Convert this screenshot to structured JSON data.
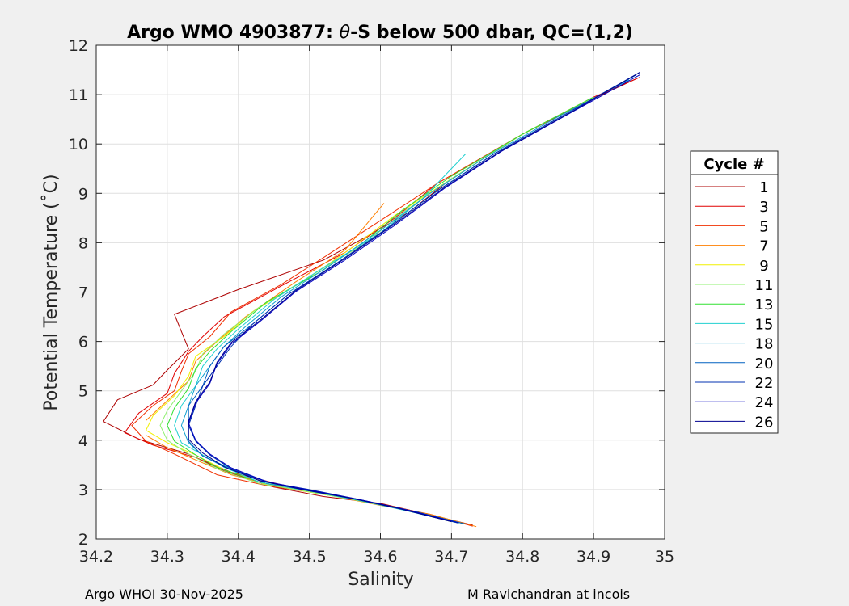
{
  "chart_data": {
    "type": "line",
    "title_prefix": "Argo WMO 4903877: ",
    "title_theta": "θ",
    "title_suffix": "-S below 500 dbar,  QC=(1,2)",
    "xlabel": "Salinity",
    "ylabel": "Potential Temperature (˚C)",
    "xlim": [
      34.2,
      35
    ],
    "ylim": [
      2,
      12
    ],
    "xticks": [
      "34.2",
      "34.3",
      "34.4",
      "34.5",
      "34.6",
      "34.7",
      "34.8",
      "34.9",
      "35"
    ],
    "yticks": [
      "2",
      "3",
      "4",
      "5",
      "6",
      "7",
      "8",
      "9",
      "10",
      "11",
      "12"
    ],
    "grid": true,
    "legend": {
      "title": "Cycle #",
      "placement": "right",
      "entries": [
        "1",
        "3",
        "5",
        "7",
        "9",
        "11",
        "13",
        "15",
        "18",
        "20",
        "22",
        "24",
        "26"
      ],
      "colors": [
        "#ad0000",
        "#e00000",
        "#f03000",
        "#ff7f00",
        "#f0f000",
        "#8ff070",
        "#30e030",
        "#20d0d0",
        "#10a0d0",
        "#0060c0",
        "#0030b0",
        "#0000c0",
        "#00008f"
      ]
    },
    "series": [
      {
        "name": "1",
        "values": [
          [
            34.73,
            2.28
          ],
          [
            34.66,
            2.52
          ],
          [
            34.6,
            2.72
          ],
          [
            34.52,
            2.86
          ],
          [
            34.45,
            3.05
          ],
          [
            34.38,
            3.38
          ],
          [
            34.33,
            3.72
          ],
          [
            34.26,
            4.02
          ],
          [
            34.21,
            4.38
          ],
          [
            34.23,
            4.82
          ],
          [
            34.28,
            5.12
          ],
          [
            34.3,
            5.42
          ],
          [
            34.33,
            5.85
          ],
          [
            34.32,
            6.2
          ],
          [
            34.31,
            6.55
          ],
          [
            34.4,
            7.05
          ],
          [
            34.52,
            7.65
          ],
          [
            34.58,
            8.12
          ],
          [
            34.64,
            8.62
          ],
          [
            34.7,
            9.3
          ],
          [
            34.8,
            10.2
          ],
          [
            34.9,
            10.92
          ],
          [
            34.96,
            11.32
          ]
        ]
      },
      {
        "name": "3",
        "values": [
          [
            34.73,
            2.26
          ],
          [
            34.67,
            2.5
          ],
          [
            34.6,
            2.7
          ],
          [
            34.53,
            2.9
          ],
          [
            34.46,
            3.1
          ],
          [
            34.39,
            3.35
          ],
          [
            34.34,
            3.65
          ],
          [
            34.28,
            3.9
          ],
          [
            34.24,
            4.15
          ],
          [
            34.26,
            4.55
          ],
          [
            34.3,
            4.95
          ],
          [
            34.31,
            5.35
          ],
          [
            34.33,
            5.8
          ],
          [
            34.35,
            6.1
          ],
          [
            34.38,
            6.5
          ],
          [
            34.47,
            7.2
          ],
          [
            34.55,
            7.8
          ],
          [
            34.62,
            8.5
          ],
          [
            34.68,
            9.2
          ],
          [
            34.8,
            10.2
          ],
          [
            34.9,
            10.95
          ],
          [
            34.965,
            11.35
          ]
        ]
      },
      {
        "name": "5",
        "values": [
          [
            34.72,
            2.3
          ],
          [
            34.66,
            2.5
          ],
          [
            34.58,
            2.76
          ],
          [
            34.51,
            2.93
          ],
          [
            34.44,
            3.08
          ],
          [
            34.37,
            3.3
          ],
          [
            34.31,
            3.72
          ],
          [
            34.27,
            3.98
          ],
          [
            34.25,
            4.3
          ],
          [
            34.28,
            4.7
          ],
          [
            34.31,
            5.0
          ],
          [
            34.32,
            5.4
          ],
          [
            34.33,
            5.75
          ],
          [
            34.36,
            6.1
          ],
          [
            34.39,
            6.6
          ],
          [
            34.46,
            7.15
          ],
          [
            34.52,
            7.7
          ],
          [
            34.6,
            8.45
          ],
          [
            34.68,
            9.2
          ],
          [
            34.8,
            10.2
          ],
          [
            34.9,
            10.95
          ]
        ]
      },
      {
        "name": "7",
        "values": [
          [
            34.735,
            2.25
          ],
          [
            34.67,
            2.5
          ],
          [
            34.6,
            2.68
          ],
          [
            34.53,
            2.88
          ],
          [
            34.46,
            3.05
          ],
          [
            34.39,
            3.3
          ],
          [
            34.34,
            3.6
          ],
          [
            34.3,
            3.85
          ],
          [
            34.27,
            4.1
          ],
          [
            34.27,
            4.4
          ],
          [
            34.3,
            4.8
          ],
          [
            34.33,
            5.2
          ],
          [
            34.34,
            5.6
          ],
          [
            34.37,
            6.0
          ],
          [
            34.41,
            6.5
          ],
          [
            34.48,
            7.2
          ],
          [
            34.55,
            7.85
          ],
          [
            34.605,
            8.8
          ]
        ]
      },
      {
        "name": "9",
        "values": [
          [
            34.72,
            2.3
          ],
          [
            34.65,
            2.55
          ],
          [
            34.57,
            2.78
          ],
          [
            34.5,
            2.95
          ],
          [
            34.44,
            3.1
          ],
          [
            34.38,
            3.4
          ],
          [
            34.34,
            3.7
          ],
          [
            34.3,
            3.95
          ],
          [
            34.27,
            4.2
          ],
          [
            34.28,
            4.5
          ],
          [
            34.31,
            4.9
          ],
          [
            34.33,
            5.3
          ],
          [
            34.34,
            5.7
          ],
          [
            34.38,
            6.1
          ],
          [
            34.42,
            6.6
          ],
          [
            34.5,
            7.3
          ],
          [
            34.56,
            7.9
          ],
          [
            34.62,
            8.55
          ],
          [
            34.7,
            9.3
          ],
          [
            34.8,
            10.2
          ],
          [
            34.9,
            10.95
          ]
        ]
      },
      {
        "name": "11",
        "values": [
          [
            34.7,
            2.35
          ],
          [
            34.63,
            2.6
          ],
          [
            34.56,
            2.8
          ],
          [
            34.49,
            2.98
          ],
          [
            34.43,
            3.12
          ],
          [
            34.37,
            3.42
          ],
          [
            34.33,
            3.72
          ],
          [
            34.3,
            4.0
          ],
          [
            34.29,
            4.3
          ],
          [
            34.3,
            4.6
          ],
          [
            34.32,
            5.0
          ],
          [
            34.34,
            5.4
          ],
          [
            34.35,
            5.75
          ],
          [
            34.38,
            6.15
          ],
          [
            34.43,
            6.7
          ],
          [
            34.51,
            7.4
          ],
          [
            34.58,
            8.0
          ],
          [
            34.63,
            8.6
          ],
          [
            34.7,
            9.3
          ],
          [
            34.8,
            10.2
          ],
          [
            34.9,
            10.95
          ]
        ]
      },
      {
        "name": "13",
        "values": [
          [
            34.72,
            2.3
          ],
          [
            34.65,
            2.55
          ],
          [
            34.57,
            2.78
          ],
          [
            34.5,
            2.98
          ],
          [
            34.43,
            3.15
          ],
          [
            34.37,
            3.45
          ],
          [
            34.34,
            3.7
          ],
          [
            34.31,
            3.98
          ],
          [
            34.3,
            4.3
          ],
          [
            34.31,
            4.65
          ],
          [
            34.33,
            5.05
          ],
          [
            34.34,
            5.45
          ],
          [
            34.36,
            5.8
          ],
          [
            34.39,
            6.2
          ],
          [
            34.44,
            6.8
          ],
          [
            34.52,
            7.45
          ],
          [
            34.58,
            8.05
          ],
          [
            34.63,
            8.65
          ],
          [
            34.7,
            9.35
          ],
          [
            34.8,
            10.2
          ],
          [
            34.9,
            10.95
          ]
        ]
      },
      {
        "name": "15",
        "values": [
          [
            34.71,
            2.32
          ],
          [
            34.64,
            2.56
          ],
          [
            34.57,
            2.78
          ],
          [
            34.5,
            2.97
          ],
          [
            34.43,
            3.15
          ],
          [
            34.38,
            3.45
          ],
          [
            34.35,
            3.7
          ],
          [
            34.32,
            3.95
          ],
          [
            34.31,
            4.3
          ],
          [
            34.32,
            4.7
          ],
          [
            34.34,
            5.1
          ],
          [
            34.35,
            5.5
          ],
          [
            34.37,
            5.85
          ],
          [
            34.4,
            6.25
          ],
          [
            34.45,
            6.85
          ],
          [
            34.52,
            7.5
          ],
          [
            34.6,
            8.2
          ],
          [
            34.66,
            8.9
          ],
          [
            34.72,
            9.8
          ]
        ]
      },
      {
        "name": "18",
        "values": [
          [
            34.72,
            2.3
          ],
          [
            34.65,
            2.55
          ],
          [
            34.58,
            2.76
          ],
          [
            34.51,
            2.95
          ],
          [
            34.44,
            3.12
          ],
          [
            34.39,
            3.42
          ],
          [
            34.35,
            3.68
          ],
          [
            34.33,
            3.95
          ],
          [
            34.32,
            4.3
          ],
          [
            34.33,
            4.7
          ],
          [
            34.34,
            5.1
          ],
          [
            34.36,
            5.5
          ],
          [
            34.38,
            5.9
          ],
          [
            34.41,
            6.3
          ],
          [
            34.46,
            6.9
          ],
          [
            34.53,
            7.55
          ],
          [
            34.6,
            8.25
          ],
          [
            34.67,
            9.0
          ],
          [
            34.75,
            9.75
          ],
          [
            34.85,
            10.55
          ],
          [
            34.95,
            11.3
          ]
        ]
      },
      {
        "name": "20",
        "values": [
          [
            34.72,
            2.3
          ],
          [
            34.65,
            2.55
          ],
          [
            34.58,
            2.77
          ],
          [
            34.51,
            2.96
          ],
          [
            34.45,
            3.12
          ],
          [
            34.39,
            3.4
          ],
          [
            34.35,
            3.68
          ],
          [
            34.33,
            3.98
          ],
          [
            34.33,
            4.3
          ],
          [
            34.33,
            4.7
          ],
          [
            34.35,
            5.1
          ],
          [
            34.36,
            5.5
          ],
          [
            34.38,
            5.9
          ],
          [
            34.42,
            6.35
          ],
          [
            34.47,
            6.95
          ],
          [
            34.54,
            7.6
          ],
          [
            34.61,
            8.3
          ],
          [
            34.68,
            9.05
          ],
          [
            34.76,
            9.8
          ],
          [
            34.86,
            10.6
          ],
          [
            34.96,
            11.4
          ]
        ]
      },
      {
        "name": "22",
        "values": [
          [
            34.71,
            2.32
          ],
          [
            34.64,
            2.57
          ],
          [
            34.57,
            2.8
          ],
          [
            34.5,
            3.0
          ],
          [
            34.44,
            3.15
          ],
          [
            34.39,
            3.42
          ],
          [
            34.36,
            3.7
          ],
          [
            34.34,
            3.98
          ],
          [
            34.33,
            4.3
          ],
          [
            34.34,
            4.7
          ],
          [
            34.35,
            5.1
          ],
          [
            34.37,
            5.5
          ],
          [
            34.39,
            5.9
          ],
          [
            34.42,
            6.35
          ],
          [
            34.47,
            6.95
          ],
          [
            34.54,
            7.6
          ],
          [
            34.61,
            8.3
          ],
          [
            34.68,
            9.05
          ],
          [
            34.76,
            9.8
          ],
          [
            34.86,
            10.6
          ],
          [
            34.965,
            11.45
          ]
        ]
      },
      {
        "name": "24",
        "values": [
          [
            34.71,
            2.33
          ],
          [
            34.64,
            2.58
          ],
          [
            34.57,
            2.8
          ],
          [
            34.5,
            2.99
          ],
          [
            34.44,
            3.16
          ],
          [
            34.39,
            3.44
          ],
          [
            34.36,
            3.72
          ],
          [
            34.34,
            4.0
          ],
          [
            34.33,
            4.35
          ],
          [
            34.34,
            4.75
          ],
          [
            34.36,
            5.15
          ],
          [
            34.37,
            5.55
          ],
          [
            34.39,
            5.95
          ],
          [
            34.43,
            6.4
          ],
          [
            34.48,
            7.0
          ],
          [
            34.55,
            7.65
          ],
          [
            34.62,
            8.35
          ],
          [
            34.69,
            9.1
          ],
          [
            34.77,
            9.85
          ],
          [
            34.87,
            10.65
          ],
          [
            34.965,
            11.4
          ]
        ]
      },
      {
        "name": "26",
        "values": [
          [
            34.7,
            2.35
          ],
          [
            34.63,
            2.6
          ],
          [
            34.56,
            2.82
          ],
          [
            34.49,
            3.0
          ],
          [
            34.43,
            3.18
          ],
          [
            34.38,
            3.46
          ],
          [
            34.35,
            3.74
          ],
          [
            34.33,
            4.02
          ],
          [
            34.33,
            4.38
          ],
          [
            34.34,
            4.78
          ],
          [
            34.36,
            5.18
          ],
          [
            34.37,
            5.58
          ],
          [
            34.39,
            5.98
          ],
          [
            34.43,
            6.42
          ],
          [
            34.48,
            7.02
          ],
          [
            34.55,
            7.68
          ],
          [
            34.62,
            8.38
          ],
          [
            34.69,
            9.12
          ],
          [
            34.77,
            9.86
          ],
          [
            34.87,
            10.66
          ],
          [
            34.965,
            11.45
          ]
        ]
      }
    ]
  },
  "footer": {
    "left": "Argo WHOI 30-Nov-2025",
    "right": "M Ravichandran at incois"
  }
}
